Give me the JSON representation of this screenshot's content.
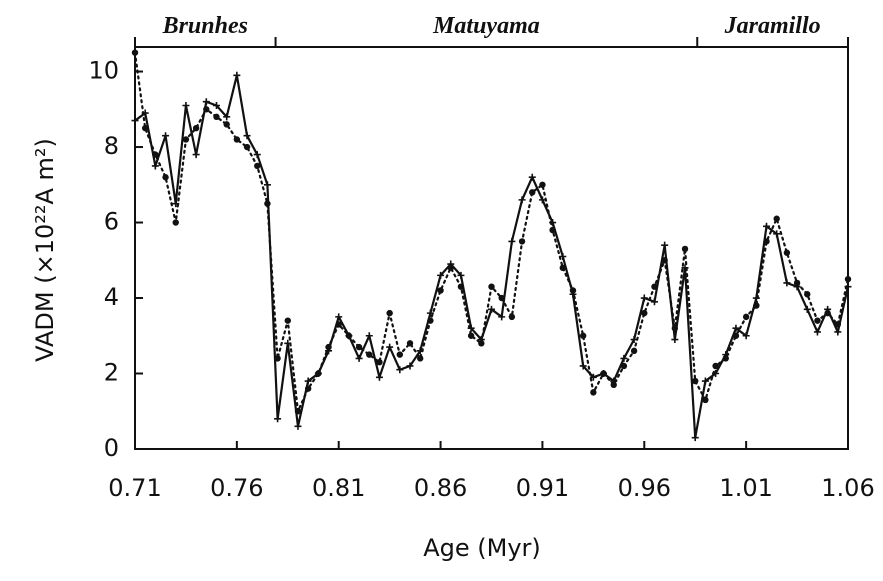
{
  "chart_data": {
    "type": "line",
    "xlabel": "Age (Myr)",
    "ylabel": "VADM (×10²²A m²)",
    "chrons": [
      "Brunhes",
      "Matuyama",
      "Jaramillo"
    ],
    "chron_boundaries": [
      0.779,
      0.986
    ],
    "xlim": [
      0.71,
      1.06
    ],
    "xticks": [
      0.71,
      0.76,
      0.81,
      0.86,
      0.91,
      0.96,
      1.01,
      1.06
    ],
    "ylim": [
      0,
      10.65
    ],
    "yticks": [
      0,
      2,
      4,
      6,
      8,
      10
    ],
    "x": [
      0.71,
      0.715,
      0.72,
      0.725,
      0.73,
      0.735,
      0.74,
      0.745,
      0.75,
      0.755,
      0.76,
      0.765,
      0.77,
      0.775,
      0.78,
      0.785,
      0.79,
      0.795,
      0.8,
      0.805,
      0.81,
      0.815,
      0.82,
      0.825,
      0.83,
      0.835,
      0.84,
      0.845,
      0.85,
      0.855,
      0.86,
      0.865,
      0.87,
      0.875,
      0.88,
      0.885,
      0.89,
      0.895,
      0.9,
      0.905,
      0.91,
      0.915,
      0.92,
      0.925,
      0.93,
      0.935,
      0.94,
      0.945,
      0.95,
      0.955,
      0.96,
      0.965,
      0.97,
      0.975,
      0.98,
      0.985,
      0.99,
      0.995,
      1.0,
      1.005,
      1.01,
      1.015,
      1.02,
      1.025,
      1.03,
      1.035,
      1.04,
      1.045,
      1.05,
      1.055,
      1.06
    ],
    "series": [
      {
        "color": "#111111",
        "style": "solid",
        "marker": "plus",
        "values": [
          8.7,
          8.9,
          7.5,
          8.3,
          6.5,
          9.1,
          7.8,
          9.2,
          9.1,
          8.8,
          9.9,
          8.3,
          7.8,
          7.0,
          0.8,
          2.8,
          0.6,
          1.8,
          2.0,
          2.6,
          3.5,
          3.0,
          2.4,
          3.0,
          1.9,
          2.7,
          2.1,
          2.2,
          2.6,
          3.6,
          4.6,
          4.9,
          4.6,
          3.2,
          2.9,
          3.7,
          3.5,
          5.5,
          6.6,
          7.2,
          6.6,
          6.0,
          5.1,
          4.1,
          2.2,
          1.9,
          2.0,
          1.8,
          2.4,
          2.9,
          4.0,
          3.9,
          5.4,
          2.9,
          4.8,
          0.3,
          1.8,
          2.0,
          2.5,
          3.2,
          3.0,
          4.0,
          5.9,
          5.7,
          4.4,
          4.3,
          3.7,
          3.1,
          3.7,
          3.1,
          4.3
        ]
      },
      {
        "color": "#111111",
        "style": "dotted",
        "marker": "dot",
        "values": [
          10.5,
          8.5,
          7.8,
          7.2,
          6.0,
          8.2,
          8.5,
          9.0,
          8.8,
          8.6,
          8.2,
          8.0,
          7.5,
          6.5,
          2.4,
          3.4,
          1.0,
          1.6,
          2.0,
          2.7,
          3.3,
          3.0,
          2.7,
          2.5,
          2.3,
          3.6,
          2.5,
          2.8,
          2.4,
          3.4,
          4.2,
          4.8,
          4.3,
          3.0,
          2.8,
          4.3,
          4.0,
          3.5,
          5.5,
          6.8,
          7.0,
          5.8,
          4.8,
          4.2,
          3.0,
          1.5,
          2.0,
          1.7,
          2.2,
          2.6,
          3.6,
          4.3,
          5.0,
          3.2,
          5.3,
          1.8,
          1.3,
          2.2,
          2.4,
          3.0,
          3.5,
          3.8,
          5.5,
          6.1,
          5.2,
          4.4,
          4.1,
          3.4,
          3.6,
          3.3,
          4.5
        ]
      }
    ]
  }
}
